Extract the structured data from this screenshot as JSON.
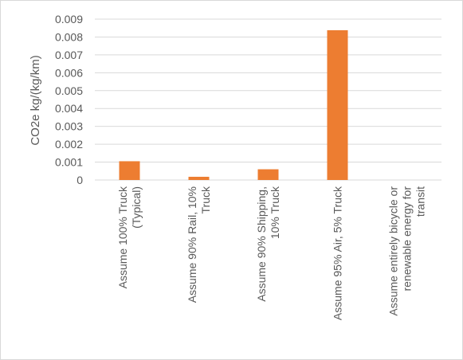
{
  "chart_data": {
    "type": "bar",
    "title": "",
    "xlabel": "",
    "ylabel": "CO2e kg/(kg/km)",
    "ylim": [
      0,
      0.009
    ],
    "yticks": [
      "0",
      "0.001",
      "0.002",
      "0.003",
      "0.004",
      "0.005",
      "0.006",
      "0.007",
      "0.008",
      "0.009"
    ],
    "grid": true,
    "legend": "none",
    "bar_color": "#ED7D31",
    "categories": [
      [
        "Assume 100% Truck",
        "(Typical)"
      ],
      [
        "Assume 90% Rail, 10%",
        "Truck"
      ],
      [
        "Assume 90% Shipping,",
        "10% Truck"
      ],
      [
        "Assume 95% Air, 5% Truck"
      ],
      [
        "Assume entirely bicycle or",
        "renewable energy for",
        "transit"
      ]
    ],
    "values": [
      0.00105,
      0.00018,
      0.0006,
      0.00838,
      0
    ]
  }
}
